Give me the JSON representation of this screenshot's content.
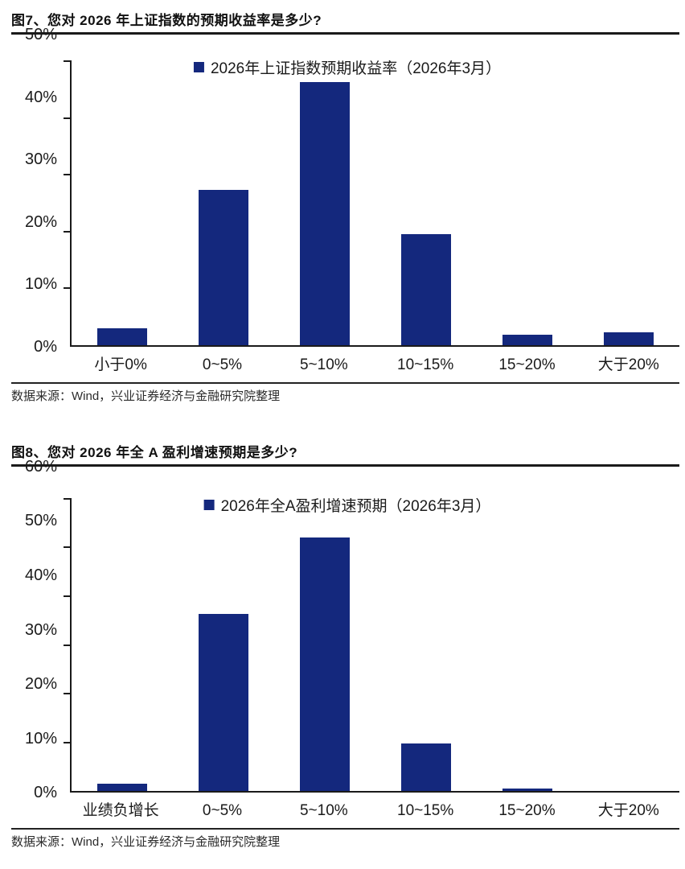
{
  "page": {
    "bar_color": "#14287d",
    "axis_color": "#1a1a1a"
  },
  "figures": [
    {
      "title": "图7、您对 2026 年上证指数的预期收益率是多少?",
      "source": "数据来源：Wind，兴业证券经济与金融研究院整理",
      "chart_data": {
        "type": "bar",
        "title": "图7、您对 2026 年上证指数的预期收益率是多少?",
        "legend": "2026年上证指数预期收益率（2026年3月）",
        "legend_position": "top-center",
        "categories": [
          "小于0%",
          "0~5%",
          "5~10%",
          "10~15%",
          "15~20%",
          "大于20%"
        ],
        "values": [
          3.0,
          27.3,
          46.3,
          19.5,
          1.8,
          2.2
        ],
        "xlabel": "",
        "ylabel": "",
        "ylim": [
          0,
          50
        ],
        "ytick_step": 10,
        "ytick_labels": [
          "50%",
          "40%",
          "30%",
          "20%",
          "10%",
          "0%"
        ],
        "grid": false,
        "bar_color": "#14287d"
      }
    },
    {
      "title": "图8、您对 2026 年全 A 盈利增速预期是多少?",
      "source": "数据来源：Wind，兴业证券经济与金融研究院整理",
      "chart_data": {
        "type": "bar",
        "title": "图8、您对 2026 年全 A 盈利增速预期是多少?",
        "legend": "2026年全A盈利增速预期（2026年3月）",
        "legend_position": "top-center",
        "categories": [
          "业绩负增长",
          "0~5%",
          "5~10%",
          "10~15%",
          "15~20%",
          "大于20%"
        ],
        "values": [
          1.5,
          36.4,
          52.0,
          9.7,
          0.5,
          0.0
        ],
        "xlabel": "",
        "ylabel": "",
        "ylim": [
          0,
          60
        ],
        "ytick_step": 10,
        "ytick_labels": [
          "60%",
          "50%",
          "40%",
          "30%",
          "20%",
          "10%",
          "0%"
        ],
        "grid": false,
        "bar_color": "#14287d"
      }
    }
  ]
}
